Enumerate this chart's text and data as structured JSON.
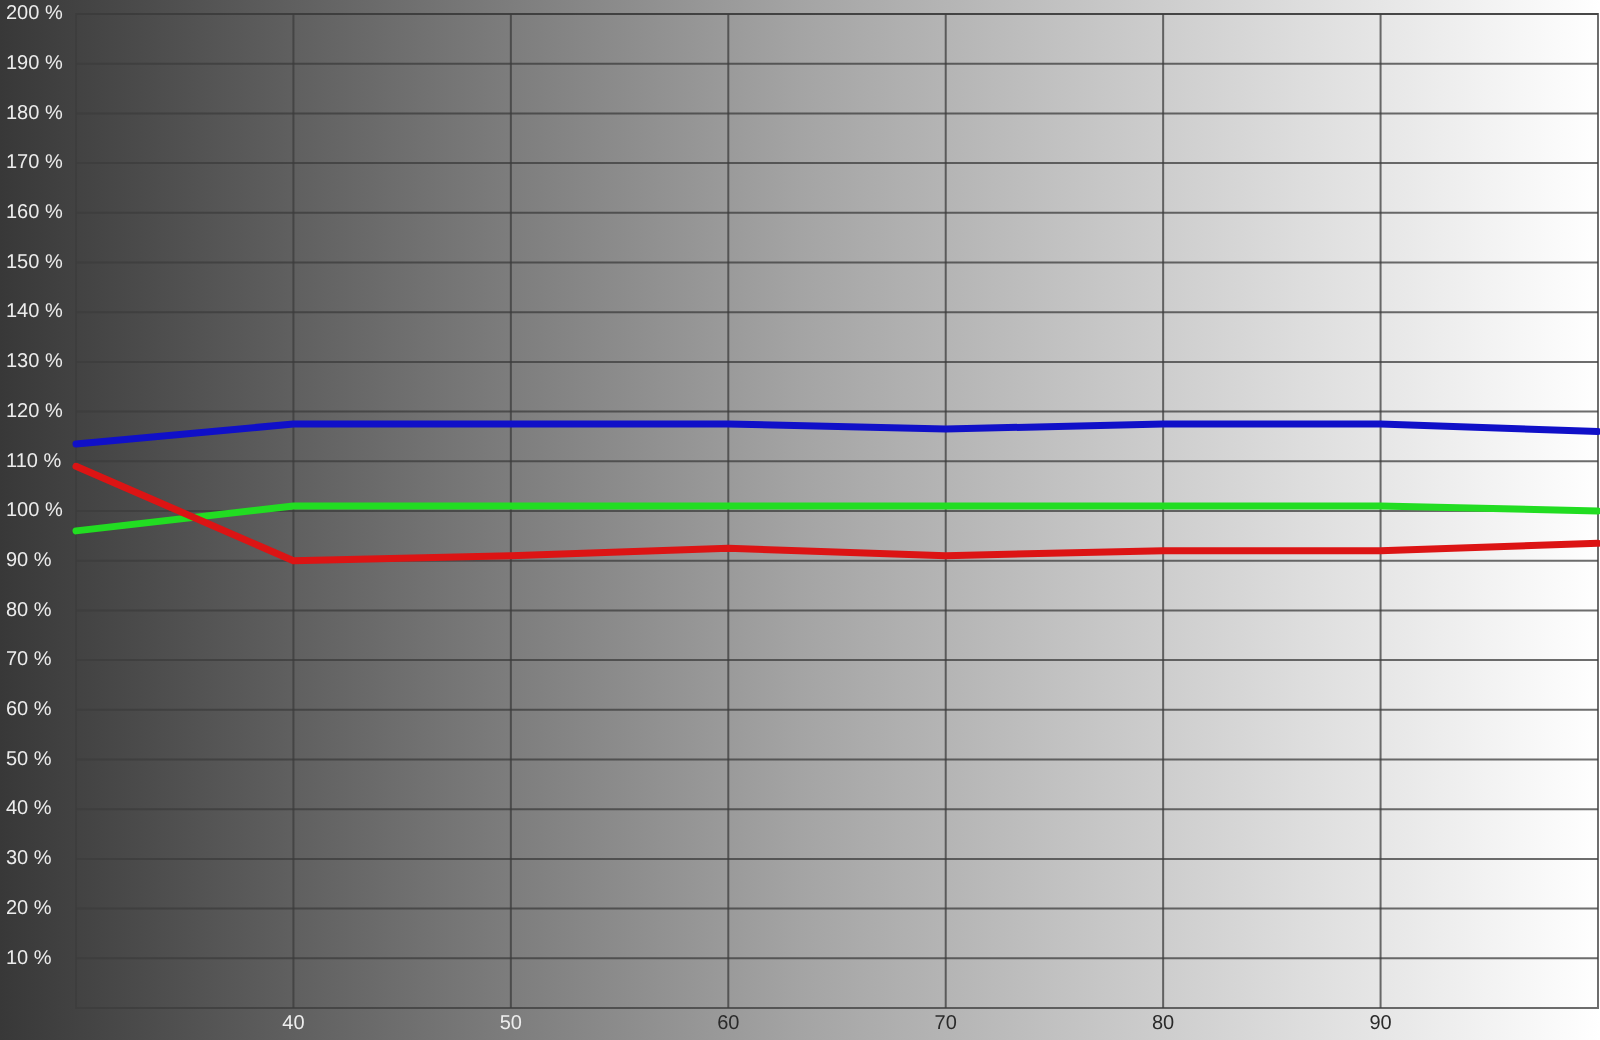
{
  "chart_data": {
    "type": "line",
    "x": [
      30,
      40,
      50,
      60,
      70,
      80,
      90,
      100
    ],
    "series": [
      {
        "color": "#1010c8",
        "values": [
          113.5,
          117.5,
          117.5,
          117.5,
          116.5,
          117.5,
          117.5,
          116
        ]
      },
      {
        "color": "#22dd22",
        "values": [
          96,
          101,
          101,
          101,
          101,
          101,
          101,
          100
        ]
      },
      {
        "color": "#dc1414",
        "values": [
          109,
          90,
          91,
          92.5,
          91,
          92,
          92,
          93.5
        ]
      }
    ],
    "xlim": [
      30,
      100
    ],
    "ylim": [
      0,
      200
    ],
    "xticks": [
      40,
      50,
      60,
      70,
      80,
      90
    ],
    "yticks": [
      {
        "value": 10,
        "label": "10 %"
      },
      {
        "value": 20,
        "label": "20 %"
      },
      {
        "value": 30,
        "label": "30 %"
      },
      {
        "value": 40,
        "label": "40 %"
      },
      {
        "value": 50,
        "label": "50 %"
      },
      {
        "value": 60,
        "label": "60 %"
      },
      {
        "value": 70,
        "label": "70 %"
      },
      {
        "value": 80,
        "label": "80 %"
      },
      {
        "value": 90,
        "label": "90 %"
      },
      {
        "value": 100,
        "label": "100 %"
      },
      {
        "value": 110,
        "label": "110 %"
      },
      {
        "value": 120,
        "label": "120 %"
      },
      {
        "value": 130,
        "label": "130 %"
      },
      {
        "value": 140,
        "label": "140 %"
      },
      {
        "value": 150,
        "label": "150 %"
      },
      {
        "value": 160,
        "label": "160 %"
      },
      {
        "value": 170,
        "label": "170 %"
      },
      {
        "value": 180,
        "label": "180 %"
      },
      {
        "value": 190,
        "label": "190 %"
      },
      {
        "value": 200,
        "label": "200 %"
      }
    ],
    "grid": true,
    "line_style": "solid"
  }
}
